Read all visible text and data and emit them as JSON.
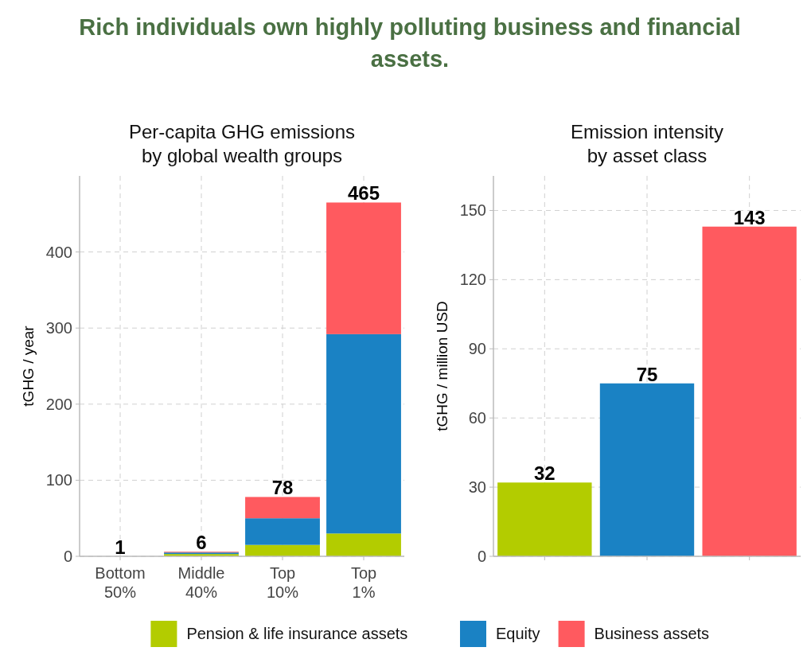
{
  "chart_data": [
    {
      "type": "bar",
      "title": "Rich individuals own highly polluting business and financial assets.",
      "subtitle": "Per-capita GHG emissions\nby global wealth groups",
      "ylabel": "tGHG / year",
      "categories": [
        "Bottom\n50%",
        "Middle\n40%",
        "Top\n10%",
        "Top\n1%"
      ],
      "stacked": true,
      "series": [
        {
          "name": "Pension & life insurance assets",
          "color": "#b3cc00",
          "values": [
            null,
            3,
            15,
            30
          ]
        },
        {
          "name": "Equity",
          "color": "#1a82c4",
          "values": [
            null,
            2,
            35,
            262
          ]
        },
        {
          "name": "Business assets",
          "color": "#ff5a5f",
          "values": [
            null,
            1,
            28,
            173
          ]
        }
      ],
      "totals": [
        "1",
        "6",
        "78",
        "465"
      ],
      "ylim": [
        0,
        500
      ],
      "yticks": [
        0,
        100,
        200,
        300,
        400
      ],
      "grid": true,
      "legend": "bottom"
    },
    {
      "type": "bar",
      "title": "Emission intensity\nby asset class",
      "ylabel": "tGHG / million USD",
      "categories": [
        null,
        null,
        null
      ],
      "values": [
        32,
        75,
        143
      ],
      "colors": [
        "#b3cc00",
        "#1a82c4",
        "#ff5a5f"
      ],
      "data_labels": true,
      "ylim": [
        0,
        165
      ],
      "yticks": [
        0,
        30,
        60,
        90,
        120,
        150
      ],
      "grid": true
    }
  ]
}
